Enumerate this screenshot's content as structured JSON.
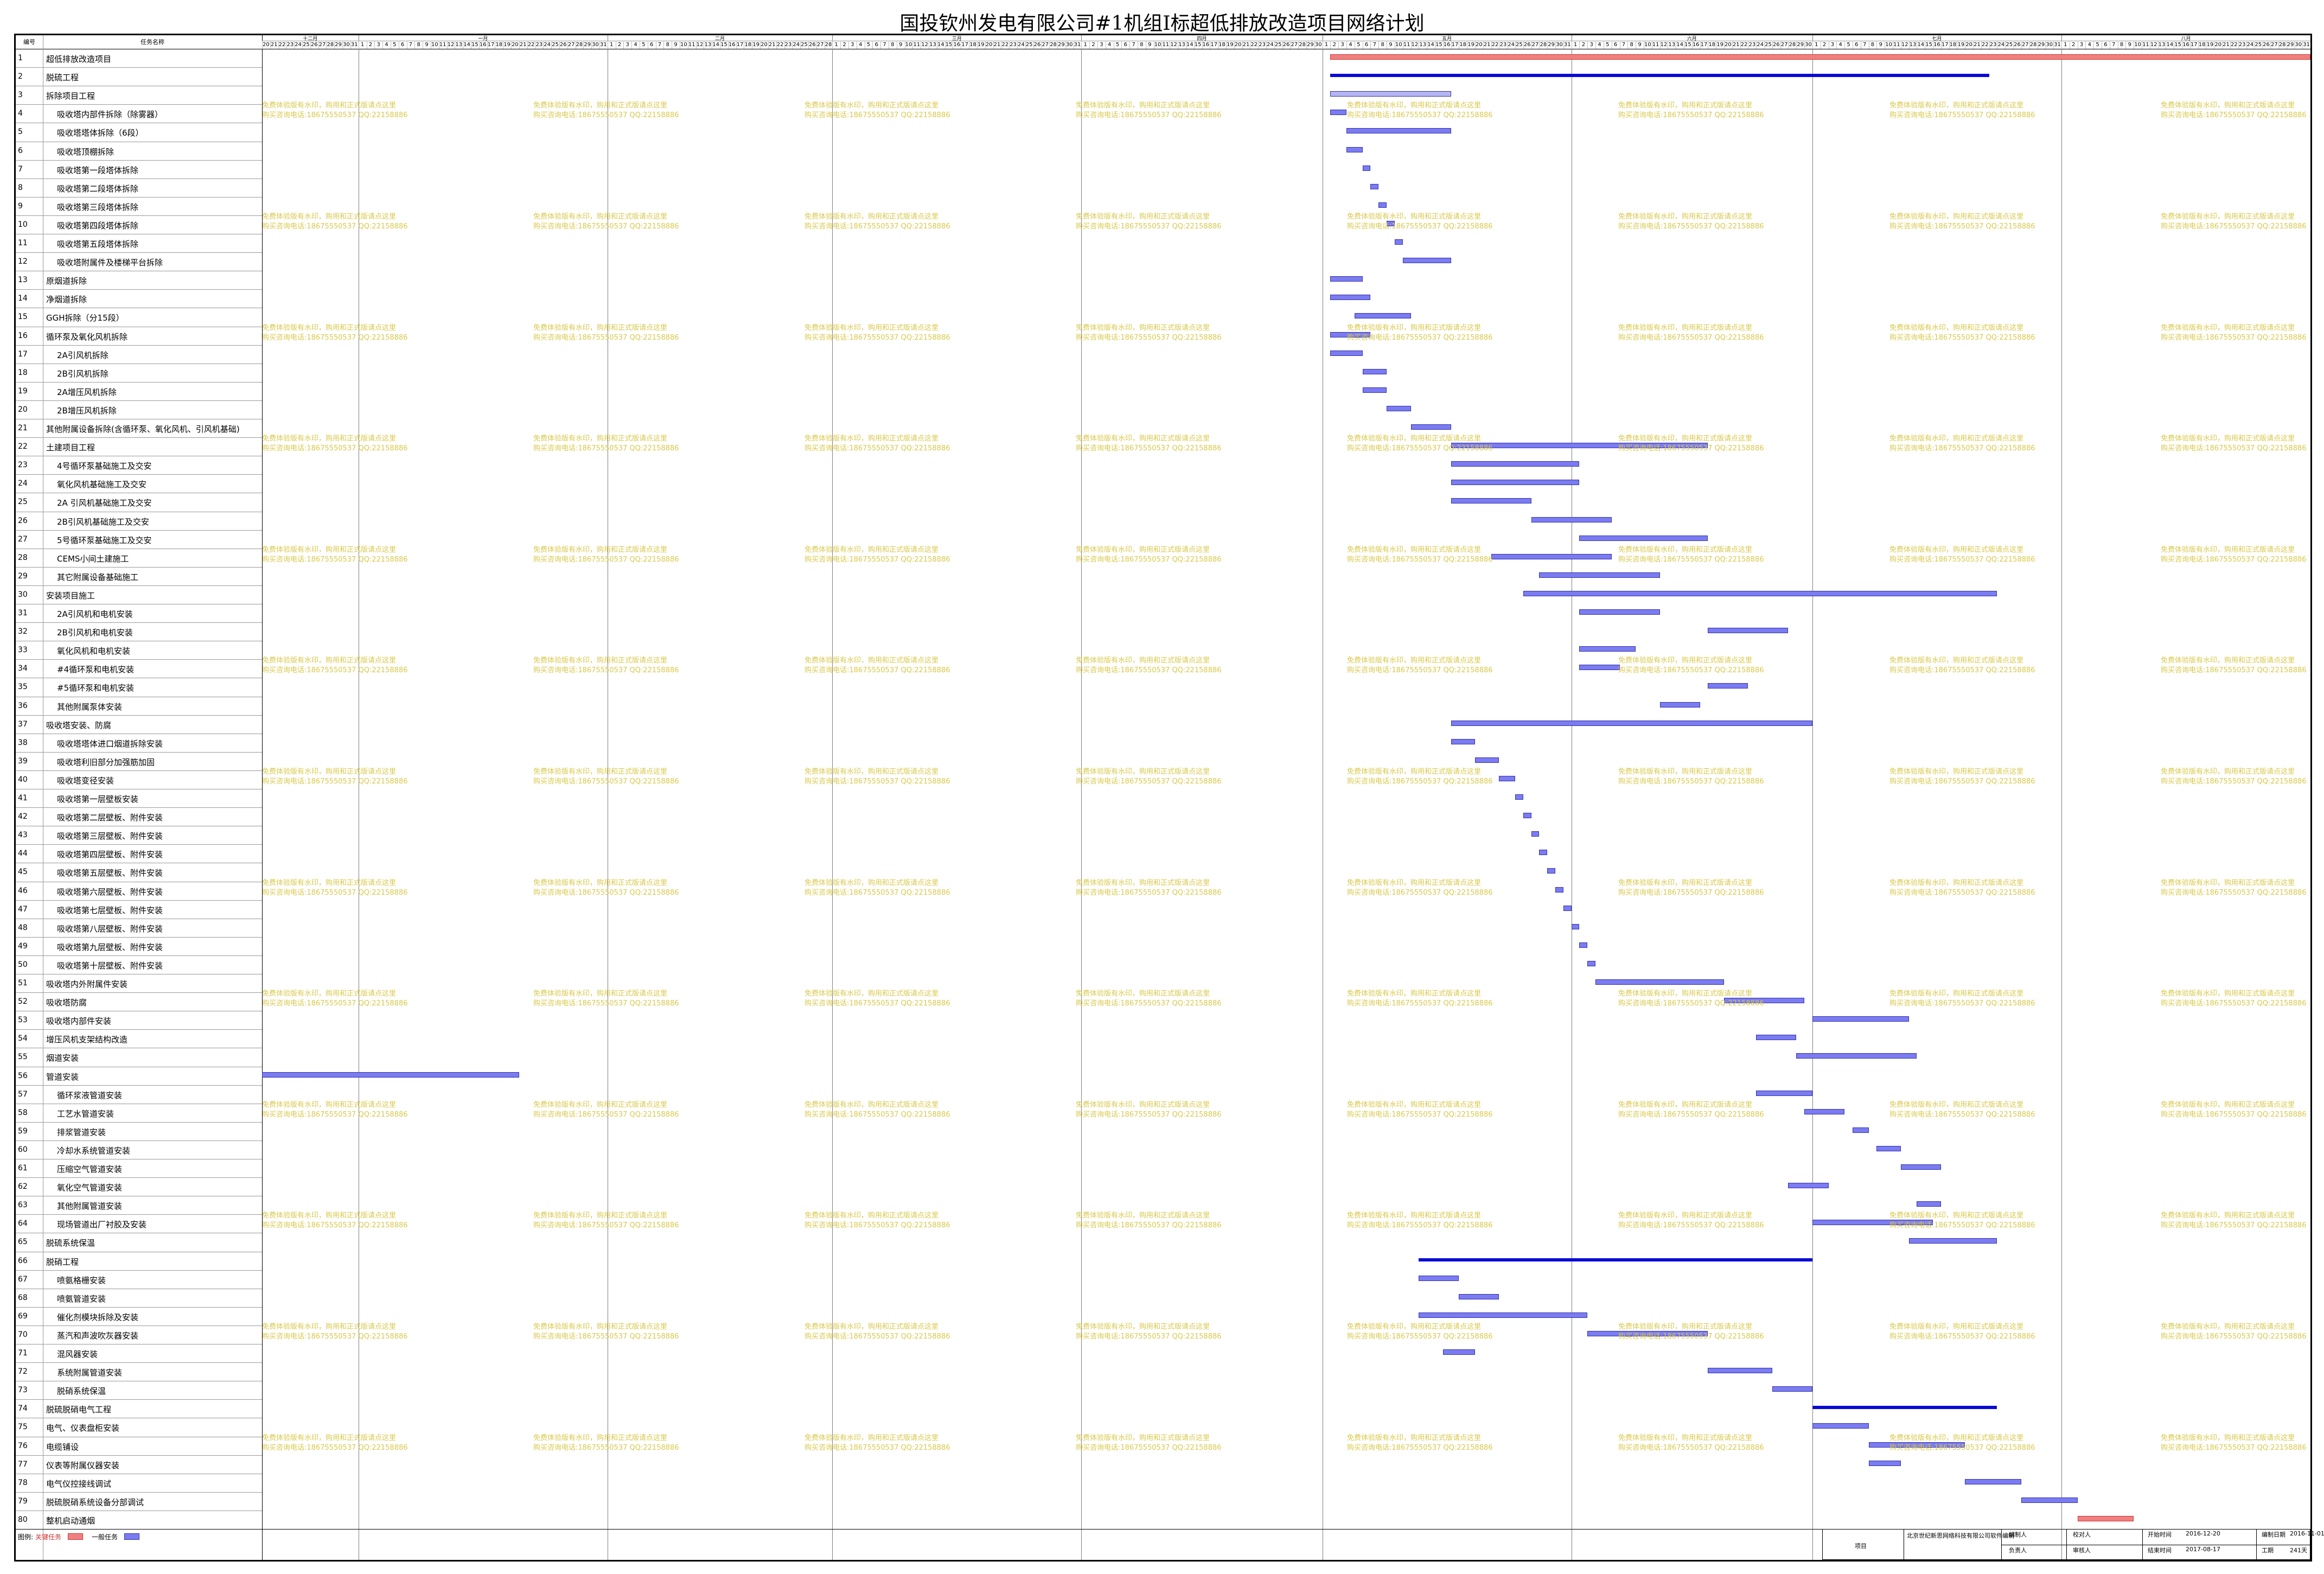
{
  "title": "国投钦州发电有限公司#1机组I标超低排放改造项目网络计划",
  "header": {
    "col_num": "编号",
    "col_name": "任务名称",
    "months": [
      "十二月",
      "一月",
      "二月",
      "三月",
      "四月",
      "五月",
      "六月",
      "七月",
      "八月"
    ]
  },
  "watermark": {
    "line1": "免费体验版有水印，购用和正式版请点这里",
    "line2": "购买咨询电话:18675550537 QQ:22158886"
  },
  "tasks": [
    {
      "id": "1",
      "name": "超低排放改造项目"
    },
    {
      "id": "2",
      "name": "脱硫工程"
    },
    {
      "id": "3",
      "name": "拆除项目工程"
    },
    {
      "id": "4",
      "name": "吸收塔内部件拆除（除雾器）"
    },
    {
      "id": "5",
      "name": "吸收塔塔体拆除（6段）"
    },
    {
      "id": "6",
      "name": "吸收塔顶棚拆除"
    },
    {
      "id": "7",
      "name": "吸收塔第一段塔体拆除"
    },
    {
      "id": "8",
      "name": "吸收塔第二段塔体拆除"
    },
    {
      "id": "9",
      "name": "吸收塔第三段塔体拆除"
    },
    {
      "id": "10",
      "name": "吸收塔第四段塔体拆除"
    },
    {
      "id": "11",
      "name": "吸收塔第五段塔体拆除"
    },
    {
      "id": "12",
      "name": "吸收塔附属件及楼梯平台拆除"
    },
    {
      "id": "13",
      "name": "原烟道拆除"
    },
    {
      "id": "14",
      "name": "净烟道拆除"
    },
    {
      "id": "15",
      "name": "GGH拆除（分15段）"
    },
    {
      "id": "16",
      "name": "循环泵及氧化风机拆除"
    },
    {
      "id": "17",
      "name": "2A引风机拆除"
    },
    {
      "id": "18",
      "name": "2B引风机拆除"
    },
    {
      "id": "19",
      "name": "2A增压风机拆除"
    },
    {
      "id": "20",
      "name": "2B增压风机拆除"
    },
    {
      "id": "21",
      "name": "其他附属设备拆除(含循环泵、氧化风机、引风机基础)"
    },
    {
      "id": "22",
      "name": "土建项目工程"
    },
    {
      "id": "23",
      "name": "4号循环泵基础施工及交安"
    },
    {
      "id": "24",
      "name": "氧化风机基础施工及交安"
    },
    {
      "id": "25",
      "name": "2A 引风机基础施工及交安"
    },
    {
      "id": "26",
      "name": "2B引风机基础施工及交安"
    },
    {
      "id": "27",
      "name": "5号循环泵基础施工及交安"
    },
    {
      "id": "28",
      "name": "CEMS小间土建施工"
    },
    {
      "id": "29",
      "name": "其它附属设备基础施工"
    },
    {
      "id": "30",
      "name": "安装项目施工"
    },
    {
      "id": "31",
      "name": "2A引风机和电机安装"
    },
    {
      "id": "32",
      "name": "2B引风机和电机安装"
    },
    {
      "id": "33",
      "name": "氧化风机和电机安装"
    },
    {
      "id": "34",
      "name": "#4循环泵和电机安装"
    },
    {
      "id": "35",
      "name": "#5循环泵和电机安装"
    },
    {
      "id": "36",
      "name": "其他附属泵体安装"
    },
    {
      "id": "37",
      "name": "吸收塔安装、防腐"
    },
    {
      "id": "38",
      "name": "吸收塔塔体进口烟道拆除安装"
    },
    {
      "id": "39",
      "name": "吸收塔利旧部分加强筋加固"
    },
    {
      "id": "40",
      "name": "吸收塔变径安装"
    },
    {
      "id": "41",
      "name": "吸收塔第一层壁板安装"
    },
    {
      "id": "42",
      "name": "吸收塔第二层壁板、附件安装"
    },
    {
      "id": "43",
      "name": "吸收塔第三层壁板、附件安装"
    },
    {
      "id": "44",
      "name": "吸收塔第四层壁板、附件安装"
    },
    {
      "id": "45",
      "name": "吸收塔第五层壁板、附件安装"
    },
    {
      "id": "46",
      "name": "吸收塔第六层壁板、附件安装"
    },
    {
      "id": "47",
      "name": "吸收塔第七层壁板、附件安装"
    },
    {
      "id": "48",
      "name": "吸收塔第八层壁板、附件安装"
    },
    {
      "id": "49",
      "name": "吸收塔第九层壁板、附件安装"
    },
    {
      "id": "50",
      "name": "吸收塔第十层壁板、附件安装"
    },
    {
      "id": "51",
      "name": "吸收塔内外附属件安装"
    },
    {
      "id": "52",
      "name": "吸收塔防腐"
    },
    {
      "id": "53",
      "name": "吸收塔内部件安装"
    },
    {
      "id": "54",
      "name": "增压风机支架结构改造"
    },
    {
      "id": "55",
      "name": "烟道安装"
    },
    {
      "id": "56",
      "name": "管道安装"
    },
    {
      "id": "57",
      "name": "循环浆液管道安装"
    },
    {
      "id": "58",
      "name": "工艺水管道安装"
    },
    {
      "id": "59",
      "name": "排浆管道安装"
    },
    {
      "id": "60",
      "name": "冷却水系统管道安装"
    },
    {
      "id": "61",
      "name": "压缩空气管道安装"
    },
    {
      "id": "62",
      "name": "氧化空气管道安装"
    },
    {
      "id": "63",
      "name": "其他附属管道安装"
    },
    {
      "id": "64",
      "name": "现场管道出厂衬胶及安装"
    },
    {
      "id": "65",
      "name": "脱硫系统保温"
    },
    {
      "id": "66",
      "name": "脱硝工程"
    },
    {
      "id": "67",
      "name": "喷氨格栅安装"
    },
    {
      "id": "68",
      "name": "喷氨管道安装"
    },
    {
      "id": "69",
      "name": "催化剂模块拆除及安装"
    },
    {
      "id": "70",
      "name": "蒸汽和声波吹灰器安装"
    },
    {
      "id": "71",
      "name": "混风器安装"
    },
    {
      "id": "72",
      "name": "系统附属管道安装"
    },
    {
      "id": "73",
      "name": "脱硝系统保温"
    },
    {
      "id": "74",
      "name": "脱硫脱硝电气工程"
    },
    {
      "id": "75",
      "name": "电气、仪表盘柜安装"
    },
    {
      "id": "76",
      "name": "电缆铺设"
    },
    {
      "id": "77",
      "name": "仪表等附属仪器安装"
    },
    {
      "id": "78",
      "name": "电气仪控接线调试"
    },
    {
      "id": "79",
      "name": "脱硫脱硝系统设备分部调试"
    },
    {
      "id": "80",
      "name": "整机启动通烟"
    }
  ],
  "legend": {
    "label": "图例:",
    "critical": "关键任务",
    "normal": "一般任务"
  },
  "info_block": {
    "project_label": "项目",
    "software": "北京世纪新思网络科技有限公司软件编制",
    "compiler_label": "编制人",
    "checker_label": "校对人",
    "start_label": "开始时间",
    "start_value": "2016-12-20",
    "date_label": "编制日期",
    "date_value": "2016-11-01",
    "responsible_label": "负责人",
    "reviewer_label": "审核人",
    "end_label": "结束时间",
    "end_value": "2017-08-17",
    "duration_label": "工期",
    "duration_value": "241天"
  },
  "colors": {
    "critical": "#f08080",
    "normal": "#7b7bf2",
    "summary": "#0a0ad6",
    "watermark": "#d9c84a"
  }
}
